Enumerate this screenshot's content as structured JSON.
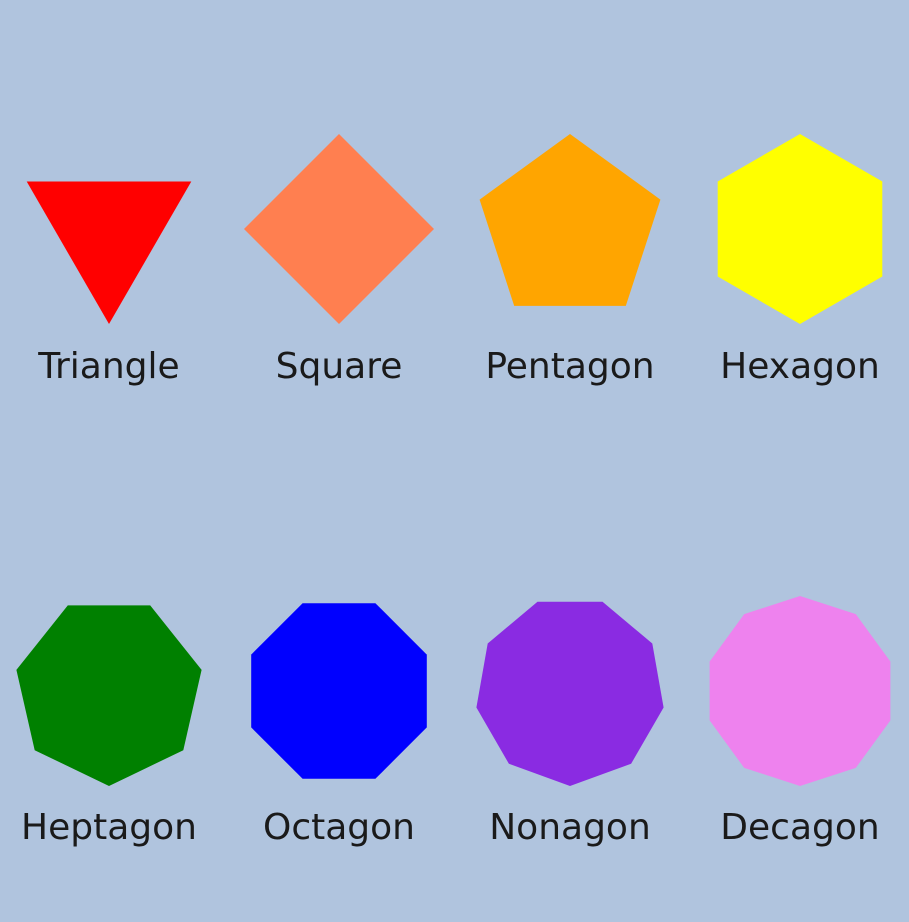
{
  "shapes": [
    {
      "label": "Triangle",
      "sides": 3,
      "color": "#ff0000"
    },
    {
      "label": "Square",
      "sides": 4,
      "color": "#ff7f50"
    },
    {
      "label": "Pentagon",
      "sides": 5,
      "color": "#ffa500"
    },
    {
      "label": "Hexagon",
      "sides": 6,
      "color": "#ffff00"
    },
    {
      "label": "Heptagon",
      "sides": 7,
      "color": "#008000"
    },
    {
      "label": "Octagon",
      "sides": 8,
      "color": "#0000ff"
    },
    {
      "label": "Nonagon",
      "sides": 9,
      "color": "#8a2be2"
    },
    {
      "label": "Decagon",
      "sides": 10,
      "color": "#ee82ee"
    }
  ]
}
